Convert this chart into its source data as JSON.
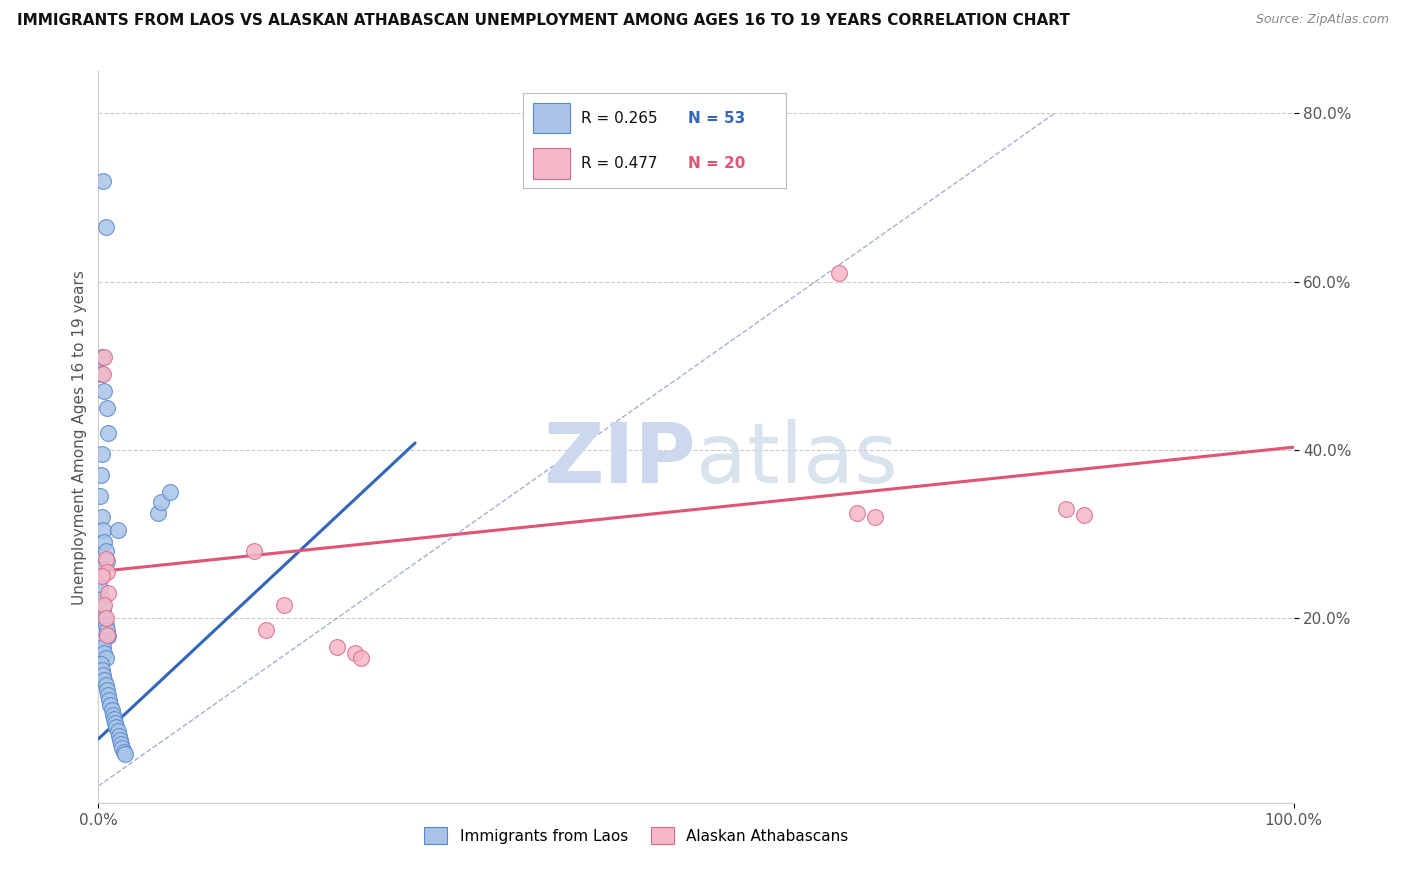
{
  "title": "IMMIGRANTS FROM LAOS VS ALASKAN ATHABASCAN UNEMPLOYMENT AMONG AGES 16 TO 19 YEARS CORRELATION CHART",
  "source": "Source: ZipAtlas.com",
  "ylabel": "Unemployment Among Ages 16 to 19 years",
  "xlim": [
    0.0,
    1.0
  ],
  "ylim": [
    -0.02,
    0.85
  ],
  "x_ticks": [
    0.0,
    1.0
  ],
  "x_tick_labels": [
    "0.0%",
    "100.0%"
  ],
  "y_ticks": [
    0.2,
    0.4,
    0.6,
    0.8
  ],
  "y_tick_labels": [
    "20.0%",
    "40.0%",
    "60.0%",
    "80.0%"
  ],
  "blue_R": "R = 0.265",
  "blue_N": "N = 53",
  "pink_R": "R = 0.477",
  "pink_N": "N = 20",
  "legend_label_blue": "Immigrants from Laos",
  "legend_label_pink": "Alaskan Athabascans",
  "blue_fill_color": "#aac4e8",
  "pink_fill_color": "#f5b8c8",
  "blue_edge_color": "#5588cc",
  "pink_edge_color": "#dd6688",
  "blue_line_color": "#3366bb",
  "pink_line_color": "#e05575",
  "dashed_line_color": "#99aacc",
  "watermark_color": "#ccd8ee",
  "background_color": "#ffffff",
  "blue_scatter_x": [
    0.004,
    0.006,
    0.003,
    0.002,
    0.005,
    0.007,
    0.008,
    0.003,
    0.002,
    0.001,
    0.003,
    0.004,
    0.005,
    0.006,
    0.007,
    0.003,
    0.002,
    0.001,
    0.003,
    0.004,
    0.005,
    0.006,
    0.007,
    0.008,
    0.003,
    0.004,
    0.005,
    0.006,
    0.002,
    0.003,
    0.004,
    0.005,
    0.006,
    0.007,
    0.008,
    0.009,
    0.01,
    0.011,
    0.012,
    0.013,
    0.014,
    0.015,
    0.016,
    0.017,
    0.018,
    0.019,
    0.02,
    0.021,
    0.022,
    0.016,
    0.05,
    0.052,
    0.06
  ],
  "blue_scatter_y": [
    0.72,
    0.665,
    0.51,
    0.49,
    0.47,
    0.45,
    0.42,
    0.395,
    0.37,
    0.345,
    0.32,
    0.305,
    0.29,
    0.28,
    0.268,
    0.258,
    0.248,
    0.235,
    0.222,
    0.21,
    0.2,
    0.192,
    0.185,
    0.178,
    0.172,
    0.165,
    0.158,
    0.152,
    0.145,
    0.138,
    0.132,
    0.126,
    0.12,
    0.114,
    0.108,
    0.102,
    0.096,
    0.09,
    0.085,
    0.08,
    0.075,
    0.07,
    0.065,
    0.06,
    0.055,
    0.05,
    0.045,
    0.04,
    0.038,
    0.305,
    0.325,
    0.338,
    0.35
  ],
  "pink_scatter_x": [
    0.004,
    0.005,
    0.006,
    0.007,
    0.008,
    0.005,
    0.006,
    0.13,
    0.155,
    0.2,
    0.215,
    0.22,
    0.62,
    0.635,
    0.65,
    0.81,
    0.825,
    0.003,
    0.007,
    0.14
  ],
  "pink_scatter_y": [
    0.49,
    0.51,
    0.27,
    0.255,
    0.23,
    0.215,
    0.2,
    0.28,
    0.215,
    0.165,
    0.158,
    0.152,
    0.61,
    0.325,
    0.32,
    0.33,
    0.322,
    0.25,
    0.18,
    0.185
  ],
  "blue_trendline": [
    [
      0.0,
      0.056
    ],
    [
      0.265,
      0.408
    ]
  ],
  "pink_trendline": [
    [
      0.0,
      0.255
    ],
    [
      1.0,
      0.403
    ]
  ],
  "diag_line": [
    [
      0.0,
      0.0
    ],
    [
      0.8,
      0.8
    ]
  ]
}
